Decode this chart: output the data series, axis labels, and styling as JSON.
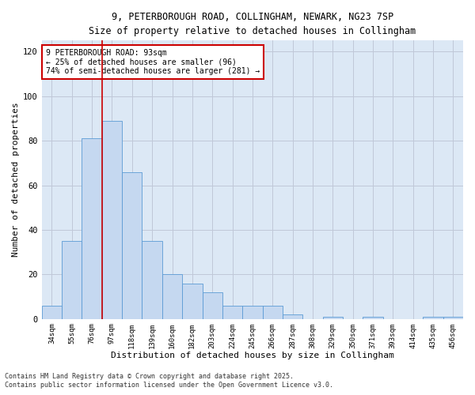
{
  "title1": "9, PETERBOROUGH ROAD, COLLINGHAM, NEWARK, NG23 7SP",
  "title2": "Size of property relative to detached houses in Collingham",
  "xlabel": "Distribution of detached houses by size in Collingham",
  "ylabel": "Number of detached properties",
  "categories": [
    "34sqm",
    "55sqm",
    "76sqm",
    "97sqm",
    "118sqm",
    "139sqm",
    "160sqm",
    "182sqm",
    "203sqm",
    "224sqm",
    "245sqm",
    "266sqm",
    "287sqm",
    "308sqm",
    "329sqm",
    "350sqm",
    "371sqm",
    "393sqm",
    "414sqm",
    "435sqm",
    "456sqm"
  ],
  "values": [
    6,
    35,
    81,
    89,
    66,
    35,
    20,
    16,
    12,
    6,
    6,
    6,
    2,
    0,
    1,
    0,
    1,
    0,
    0,
    1,
    1
  ],
  "bar_color": "#c5d8f0",
  "bar_edge_color": "#5b9bd5",
  "grid_color": "#c0c8d8",
  "background_color": "#dce8f5",
  "vline_index": 3,
  "vline_color": "#cc0000",
  "annotation_text": "9 PETERBOROUGH ROAD: 93sqm\n← 25% of detached houses are smaller (96)\n74% of semi-detached houses are larger (281) →",
  "annotation_box_color": "#cc0000",
  "ylim": [
    0,
    125
  ],
  "yticks": [
    0,
    20,
    40,
    60,
    80,
    100,
    120
  ],
  "footnote1": "Contains HM Land Registry data © Crown copyright and database right 2025.",
  "footnote2": "Contains public sector information licensed under the Open Government Licence v3.0."
}
